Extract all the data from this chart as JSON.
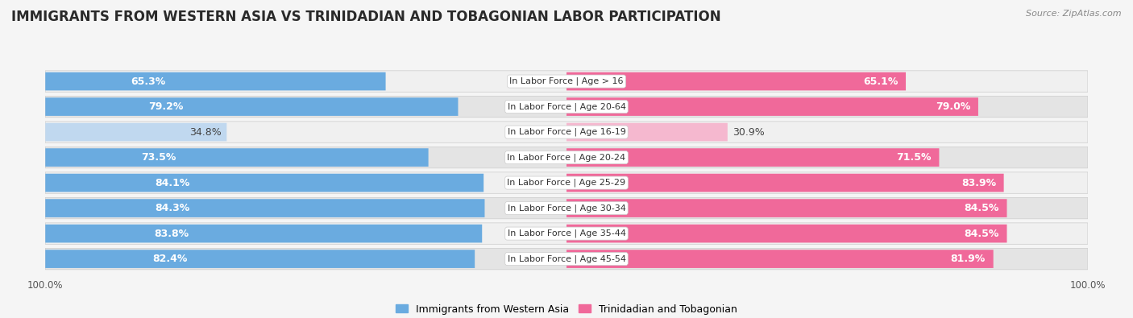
{
  "title": "IMMIGRANTS FROM WESTERN ASIA VS TRINIDADIAN AND TOBAGONIAN LABOR PARTICIPATION",
  "source": "Source: ZipAtlas.com",
  "categories": [
    "In Labor Force | Age > 16",
    "In Labor Force | Age 20-64",
    "In Labor Force | Age 16-19",
    "In Labor Force | Age 20-24",
    "In Labor Force | Age 25-29",
    "In Labor Force | Age 30-34",
    "In Labor Force | Age 35-44",
    "In Labor Force | Age 45-54"
  ],
  "western_asia_values": [
    65.3,
    79.2,
    34.8,
    73.5,
    84.1,
    84.3,
    83.8,
    82.4
  ],
  "trinidadian_values": [
    65.1,
    79.0,
    30.9,
    71.5,
    83.9,
    84.5,
    84.5,
    81.9
  ],
  "western_asia_color": "#6aabe0",
  "trinidadian_color": "#f0699a",
  "western_asia_light_color": "#c0d8ef",
  "trinidadian_light_color": "#f5b8cf",
  "row_colors": [
    "#f0f0f0",
    "#e4e4e4"
  ],
  "legend_labels": [
    "Immigrants from Western Asia",
    "Trinidadian and Tobagonian"
  ],
  "title_fontsize": 12,
  "value_fontsize": 9,
  "cat_fontsize": 8,
  "max_value": 100.0,
  "background_color": "#f5f5f5"
}
